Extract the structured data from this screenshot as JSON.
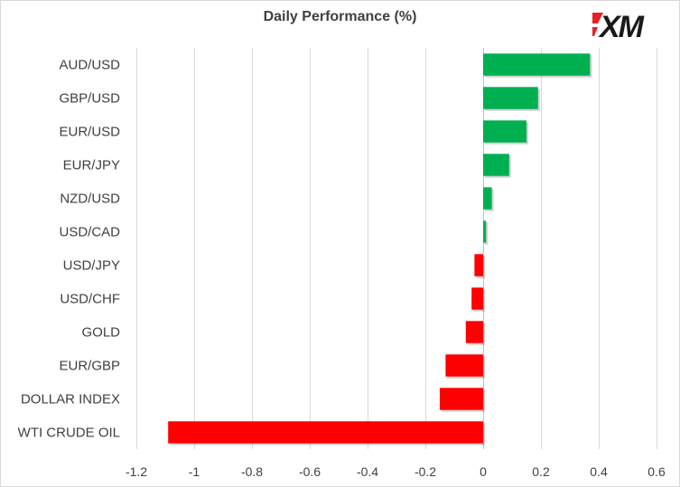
{
  "colors": {
    "positive": "#00b050",
    "negative": "#ff0000",
    "grid": "#d9d9d9",
    "text": "#404040",
    "logo_accent": "#e8202a",
    "logo_text": "#1a1a1a"
  },
  "logo": {
    "text": "XM"
  },
  "chart_data": {
    "type": "bar",
    "orientation": "horizontal",
    "title": "Daily Performance (%)",
    "categories": [
      "AUD/USD",
      "GBP/USD",
      "EUR/USD",
      "EUR/JPY",
      "NZD/USD",
      "USD/CAD",
      "USD/JPY",
      "USD/CHF",
      "GOLD",
      "EUR/GBP",
      "DOLLAR INDEX",
      "WTI CRUDE OIL"
    ],
    "values": [
      0.37,
      0.19,
      0.15,
      0.09,
      0.03,
      0.01,
      -0.03,
      -0.04,
      -0.06,
      -0.13,
      -0.15,
      -1.09
    ],
    "xlim": [
      -1.2,
      0.6
    ],
    "xticks": [
      "-1.2",
      "-1",
      "-0.8",
      "-0.6",
      "-0.4",
      "-0.2",
      "0",
      "0.2",
      "0.4",
      "0.6"
    ],
    "xlabel": "",
    "ylabel": "",
    "grid": "vertical",
    "legend": "none"
  }
}
